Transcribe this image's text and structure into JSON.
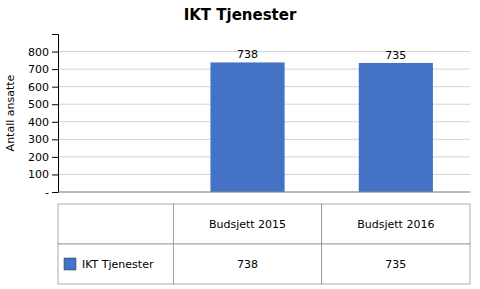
{
  "chart_data": {
    "type": "bar",
    "title": "IKT Tjenester",
    "categories": [
      "Budsjett 2015",
      "Budsjett 2016"
    ],
    "series": [
      {
        "name": "IKT Tjenester",
        "color": "#4472C4",
        "values": [
          738,
          735
        ]
      }
    ],
    "ylabel": "Antall ansatte",
    "ylim": [
      0,
      900
    ],
    "yticks": [
      {
        "value": 0,
        "label": "-"
      },
      100,
      200,
      300,
      400,
      500,
      600,
      700,
      800
    ],
    "grid": true,
    "data_labels": true,
    "tick_labels": "y",
    "legend": "bottom"
  }
}
